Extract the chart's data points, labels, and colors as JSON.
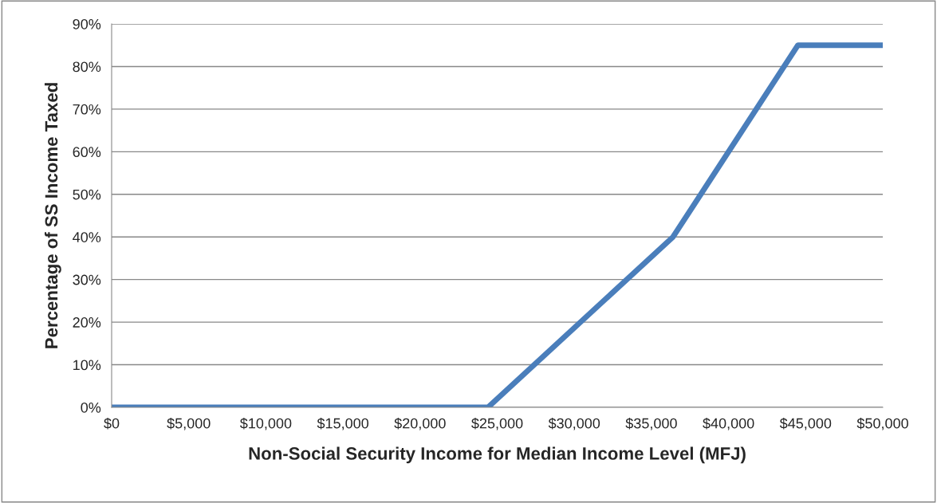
{
  "chart_data": {
    "type": "line",
    "xlabel": "Non-Social Security Income for Median Income Level (MFJ)",
    "ylabel": "Percentage of SS Income Taxed",
    "x": [
      0,
      24400,
      36400,
      44500,
      50000
    ],
    "series": [
      {
        "color": "#4a7ebb",
        "values": [
          0,
          0,
          40,
          85,
          85
        ]
      }
    ],
    "xlim": [
      0,
      50000
    ],
    "xticks": [
      {
        "value": 0,
        "label": "$0"
      },
      {
        "value": 5000,
        "label": "$5,000"
      },
      {
        "value": 10000,
        "label": "$10,000"
      },
      {
        "value": 15000,
        "label": "$15,000"
      },
      {
        "value": 20000,
        "label": "$20,000"
      },
      {
        "value": 25000,
        "label": "$25,000"
      },
      {
        "value": 30000,
        "label": "$30,000"
      },
      {
        "value": 35000,
        "label": "$35,000"
      },
      {
        "value": 40000,
        "label": "$40,000"
      },
      {
        "value": 45000,
        "label": "$45,000"
      },
      {
        "value": 50000,
        "label": "$50,000"
      }
    ],
    "ylim": [
      0,
      90
    ],
    "yticks": [
      {
        "value": 0,
        "label": "0%"
      },
      {
        "value": 10,
        "label": "10%"
      },
      {
        "value": 20,
        "label": "20%"
      },
      {
        "value": 30,
        "label": "30%"
      },
      {
        "value": 40,
        "label": "40%"
      },
      {
        "value": 50,
        "label": "50%"
      },
      {
        "value": 60,
        "label": "60%"
      },
      {
        "value": 70,
        "label": "70%"
      },
      {
        "value": 80,
        "label": "80%"
      },
      {
        "value": 90,
        "label": "90%"
      }
    ],
    "grid": "y",
    "legend": false,
    "marker": "none",
    "line_style": "solid"
  }
}
